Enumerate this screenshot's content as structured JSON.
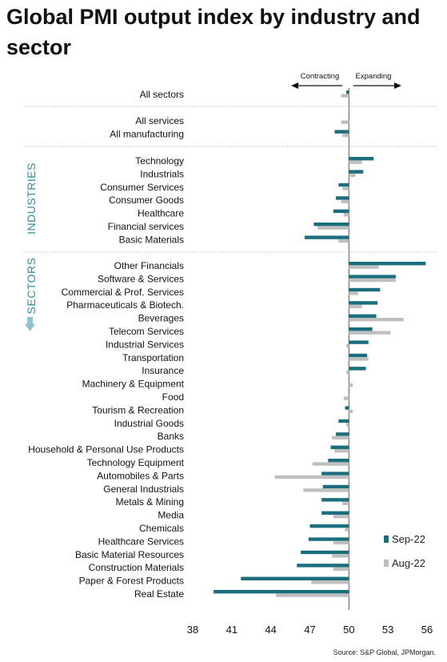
{
  "title": "Global PMI output index by industry and sector",
  "source": "Source: S&P Global, JPMorgan.",
  "direction": {
    "left": "Contracting",
    "right": "Expanding"
  },
  "group_labels": {
    "industries": "INDUSTRIES",
    "sectors": "SECTORS"
  },
  "colors": {
    "sep": "#1a6e7e",
    "aug": "#bfbfbf",
    "group_label": "#2e8fa0",
    "down_arrow": "#8fc3cf",
    "separator": "#bbbbbb"
  },
  "chart_data": {
    "type": "bar",
    "orientation": "horizontal",
    "title": "Global PMI output index by industry and sector",
    "xlim": [
      38,
      56
    ],
    "baseline": 50,
    "xticks": [
      "38",
      "41",
      "44",
      "47",
      "50",
      "53",
      "56"
    ],
    "legend": {
      "placement": "lower-right"
    },
    "series": [
      {
        "name": "Sep-22",
        "values": [
          49.8,
          null,
          48.9,
          51.9,
          51.1,
          49.2,
          49.0,
          48.8,
          47.3,
          46.6,
          55.9,
          53.6,
          52.4,
          52.2,
          52.1,
          51.8,
          51.5,
          51.4,
          51.3,
          null,
          null,
          49.7,
          49.2,
          49.0,
          48.6,
          48.4,
          47.9,
          48.0,
          47.9,
          47.9,
          47.0,
          46.9,
          46.3,
          46.0,
          41.7,
          39.6
        ]
      },
      {
        "name": "Aug-22",
        "values": [
          49.4,
          49.4,
          49.5,
          51.0,
          50.5,
          49.5,
          49.4,
          49.6,
          47.6,
          49.2,
          52.3,
          53.6,
          50.7,
          51.0,
          54.2,
          53.2,
          49.8,
          51.5,
          49.8,
          50.3,
          49.6,
          50.3,
          49.8,
          48.7,
          48.9,
          47.2,
          44.3,
          46.5,
          49.5,
          48.8,
          49.7,
          48.8,
          48.7,
          48.8,
          47.1,
          44.4
        ]
      }
    ],
    "groups": [
      {
        "name": "",
        "categories": [
          "All sectors"
        ]
      },
      {
        "name": "",
        "categories": [
          "All services",
          "All manufacturing"
        ]
      },
      {
        "name": "INDUSTRIES",
        "categories": [
          "Technology",
          "Industrials",
          "Consumer Services",
          "Consumer Goods",
          "Healthcare",
          "Financial services",
          "Basic Materials"
        ]
      },
      {
        "name": "SECTORS",
        "categories": [
          "Other Financials",
          "Software & Services",
          "Commercial & Prof. Services",
          "Pharmaceuticals & Biotech.",
          "Beverages",
          "Telecom Services",
          "Industrial Services",
          "Transportation",
          "Insurance",
          "Machinery & Equipment",
          "Food",
          "Tourism & Recreation",
          "Industrial Goods",
          "Banks",
          "Household & Personal Use Products",
          "Technology Equipment",
          "Automobiles & Parts",
          "General Industrials",
          "Metals & Mining",
          "Media",
          "Chemicals",
          "Healthcare Services",
          "Basic Material Resources",
          "Construction Materials",
          "Paper & Forest Products",
          "Real Estate"
        ]
      }
    ]
  }
}
